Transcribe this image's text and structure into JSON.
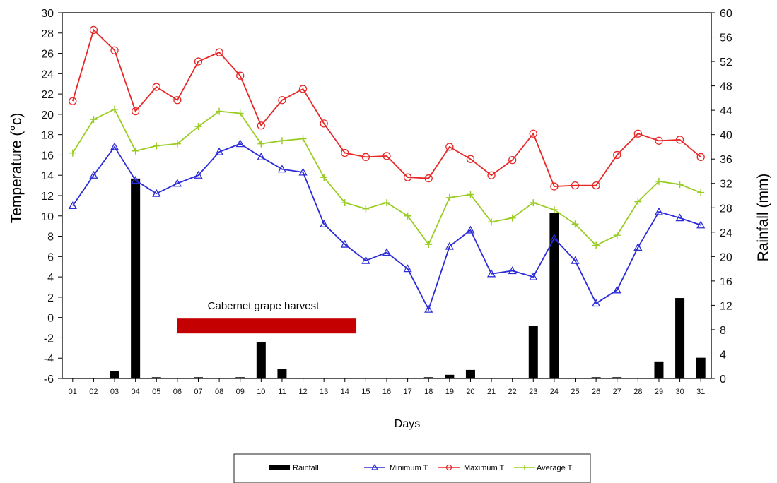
{
  "chart_data": {
    "type": "line",
    "xlabel": "Days",
    "ylabel_left": "Temperature (°c)",
    "ylabel_right": "Rainfall (mm)",
    "ylim_left": [
      -6,
      30
    ],
    "ylim_right": [
      0,
      60
    ],
    "yticks_left": [
      "30",
      "28",
      "26",
      "24",
      "22",
      "20",
      "18",
      "16",
      "14",
      "12",
      "10",
      "8",
      "6",
      "4",
      "2",
      "0",
      "-2",
      "-4",
      "-6"
    ],
    "yticks_right": [
      "60",
      "56",
      "52",
      "48",
      "44",
      "40",
      "36",
      "32",
      "28",
      "24",
      "20",
      "16",
      "12",
      "8",
      "4",
      "0"
    ],
    "categories": [
      "01",
      "02",
      "03",
      "04",
      "05",
      "06",
      "07",
      "08",
      "09",
      "10",
      "11",
      "12",
      "13",
      "14",
      "15",
      "16",
      "17",
      "18",
      "19",
      "20",
      "21",
      "22",
      "23",
      "24",
      "25",
      "26",
      "27",
      "28",
      "29",
      "30",
      "31"
    ],
    "rainfall": {
      "name": "Rainfall",
      "color": "#000000",
      "values": [
        0,
        0,
        1.2,
        32.8,
        0.2,
        0,
        0.2,
        0,
        0.2,
        6,
        1.6,
        0,
        0,
        0,
        0,
        0,
        0,
        0.2,
        0.6,
        1.4,
        0,
        0,
        8.6,
        27.2,
        0,
        0.2,
        0.2,
        0,
        2.8,
        13.2,
        3.4
      ]
    },
    "series": [
      {
        "name": "Minimum T",
        "color": "#2b2bd8",
        "marker": "triangle",
        "values": [
          11,
          14,
          16.8,
          13.5,
          12.2,
          13.2,
          14,
          16.3,
          17.1,
          15.8,
          14.6,
          14.3,
          9.2,
          7.2,
          5.6,
          6.4,
          4.8,
          0.8,
          7,
          8.6,
          4.3,
          4.6,
          4,
          7.8,
          5.6,
          1.4,
          2.7,
          6.9,
          10.4,
          9.8,
          9.1
        ]
      },
      {
        "name": "Maximum T",
        "color": "#e82727",
        "marker": "circle",
        "values": [
          21.3,
          28.3,
          26.3,
          20.3,
          22.7,
          21.4,
          25.2,
          26.1,
          23.8,
          18.9,
          21.4,
          22.5,
          19.1,
          16.2,
          15.8,
          15.9,
          13.8,
          13.7,
          16.8,
          15.6,
          14,
          15.5,
          18.1,
          12.9,
          13,
          13,
          16,
          18.1,
          17.4,
          17.5,
          15.8
        ]
      },
      {
        "name": "Average T",
        "color": "#9acd24",
        "marker": "plus",
        "values": [
          16.2,
          19.5,
          20.5,
          16.4,
          16.9,
          17.1,
          18.8,
          20.3,
          20.1,
          17.1,
          17.4,
          17.6,
          13.8,
          11.3,
          10.7,
          11.3,
          10,
          7.2,
          11.8,
          12.1,
          9.4,
          9.8,
          11.3,
          10.6,
          9.2,
          7.1,
          8.1,
          11.4,
          13.4,
          13.1,
          12.3
        ]
      }
    ],
    "annotation": {
      "text": "Cabernet grape harvest",
      "color": "#c40000",
      "from": "06",
      "to": "14",
      "y": -0.8
    },
    "legend": {
      "position": "bottom",
      "items": [
        "Rainfall",
        "Minimum T",
        "Maximum T",
        "Average T"
      ]
    },
    "grid": false
  }
}
